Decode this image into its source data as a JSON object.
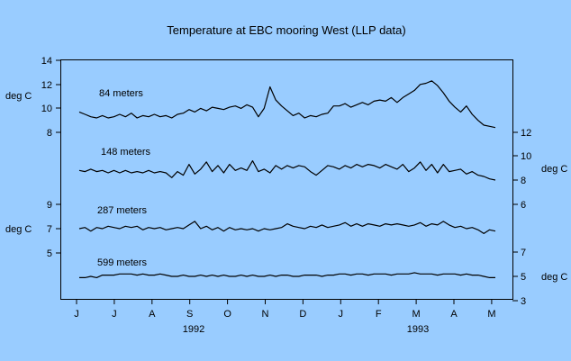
{
  "colors": {
    "background": "#99ccff",
    "ink": "#000000"
  },
  "chart_data": {
    "type": "line",
    "title": "Temperature at EBC mooring West (LLP data)",
    "unit_label": "deg C",
    "x": {
      "month_ticks": [
        "J",
        "J",
        "A",
        "S",
        "O",
        "N",
        "D",
        "J",
        "F",
        "M",
        "A",
        "M"
      ],
      "year_labels": [
        "1992",
        "1993"
      ]
    },
    "left_axis": {
      "upper_ticks": [
        "14",
        "12",
        "10",
        "8"
      ],
      "lower_ticks": [
        "9",
        "7",
        "5"
      ]
    },
    "right_axis": {
      "upper_ticks": [
        "12",
        "10",
        "8",
        "6"
      ],
      "lower_ticks": [
        "7",
        "5",
        "3"
      ]
    },
    "series": [
      {
        "name": "84 meters",
        "axis": "left-upper",
        "values": [
          9.7,
          9.5,
          9.3,
          9.2,
          9.4,
          9.2,
          9.3,
          9.5,
          9.3,
          9.6,
          9.2,
          9.4,
          9.3,
          9.5,
          9.3,
          9.4,
          9.2,
          9.5,
          9.6,
          9.9,
          9.7,
          10.0,
          9.8,
          10.1,
          10.0,
          9.9,
          10.1,
          10.2,
          10.0,
          10.3,
          10.1,
          9.3,
          10.0,
          11.8,
          10.7,
          10.2,
          9.8,
          9.4,
          9.6,
          9.2,
          9.4,
          9.3,
          9.5,
          9.6,
          10.2,
          10.2,
          10.4,
          10.1,
          10.3,
          10.5,
          10.3,
          10.6,
          10.7,
          10.6,
          10.9,
          10.5,
          10.9,
          11.2,
          11.5,
          12.0,
          12.1,
          12.3,
          11.9,
          11.3,
          10.6,
          10.1,
          9.7,
          10.2,
          9.5,
          9.0,
          8.6,
          8.5,
          8.4
        ]
      },
      {
        "name": "148 meters",
        "axis": "right-upper",
        "values": [
          8.8,
          8.7,
          8.9,
          8.7,
          8.8,
          8.6,
          8.8,
          8.6,
          8.8,
          8.6,
          8.7,
          8.6,
          8.8,
          8.6,
          8.7,
          8.6,
          8.2,
          8.7,
          8.4,
          9.3,
          8.5,
          8.9,
          9.5,
          8.7,
          9.2,
          8.6,
          9.3,
          8.8,
          9.0,
          8.8,
          9.6,
          8.7,
          8.9,
          8.6,
          9.2,
          8.9,
          9.2,
          9.0,
          9.2,
          9.1,
          8.7,
          8.4,
          8.8,
          9.2,
          9.1,
          8.9,
          9.2,
          9.0,
          9.3,
          9.1,
          9.3,
          9.2,
          9.0,
          9.3,
          9.1,
          8.9,
          9.3,
          8.7,
          9.0,
          9.5,
          8.8,
          9.3,
          8.6,
          9.3,
          8.7,
          8.8,
          8.9,
          8.5,
          8.7,
          8.4,
          8.3,
          8.1,
          8.0
        ]
      },
      {
        "name": "287 meters",
        "axis": "left-lower",
        "values": [
          7.0,
          7.1,
          6.8,
          7.1,
          7.0,
          7.2,
          7.1,
          7.0,
          7.2,
          7.1,
          7.2,
          6.9,
          7.1,
          7.0,
          7.1,
          6.9,
          7.0,
          7.1,
          7.0,
          7.3,
          7.6,
          7.0,
          7.2,
          6.9,
          7.1,
          6.8,
          7.1,
          6.9,
          7.0,
          6.9,
          7.0,
          6.8,
          7.0,
          6.9,
          7.0,
          7.1,
          7.4,
          7.2,
          7.1,
          7.0,
          7.2,
          7.1,
          7.3,
          7.1,
          7.2,
          7.3,
          7.5,
          7.2,
          7.4,
          7.2,
          7.4,
          7.3,
          7.2,
          7.4,
          7.3,
          7.4,
          7.3,
          7.2,
          7.3,
          7.5,
          7.2,
          7.4,
          7.3,
          7.6,
          7.3,
          7.1,
          7.2,
          7.0,
          7.1,
          6.9,
          6.6,
          6.9,
          6.8
        ]
      },
      {
        "name": "599 meters",
        "axis": "right-lower",
        "values": [
          4.9,
          4.9,
          5.0,
          4.9,
          5.1,
          5.1,
          5.1,
          5.2,
          5.2,
          5.2,
          5.1,
          5.2,
          5.1,
          5.1,
          5.2,
          5.1,
          5.0,
          5.0,
          5.1,
          5.0,
          5.0,
          5.1,
          5.0,
          5.1,
          5.0,
          5.1,
          5.0,
          5.0,
          5.1,
          5.0,
          5.1,
          5.0,
          5.0,
          5.1,
          5.0,
          5.1,
          5.1,
          5.0,
          5.0,
          5.1,
          5.1,
          5.1,
          5.0,
          5.1,
          5.1,
          5.2,
          5.2,
          5.1,
          5.2,
          5.2,
          5.1,
          5.2,
          5.2,
          5.2,
          5.1,
          5.2,
          5.2,
          5.2,
          5.3,
          5.2,
          5.2,
          5.2,
          5.1,
          5.2,
          5.2,
          5.2,
          5.1,
          5.2,
          5.1,
          5.1,
          5.0,
          4.9,
          4.9
        ]
      }
    ]
  }
}
